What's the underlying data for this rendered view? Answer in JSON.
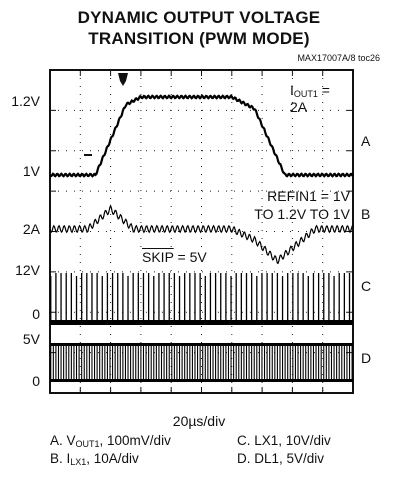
{
  "title_line1": "DYNAMIC OUTPUT VOLTAGE",
  "title_line2": "TRANSITION (PWM MODE)",
  "figure_id": "MAX17007A/8 toc26",
  "y_labels": {
    "v12": "1.2V",
    "v1": "1V",
    "a2": "2A",
    "v12b": "12V",
    "zero_c": "0",
    "v5": "5V",
    "zero_d": "0"
  },
  "channel_labels": {
    "a": "A",
    "b": "B",
    "c": "C",
    "d": "D"
  },
  "annotations": {
    "iout_prefix": "I",
    "iout_sub": "OUT1",
    "iout_suffix": " = 2A",
    "refin_line1": "REFIN1 = 1V",
    "refin_line2": "TO 1.2V TO 1V",
    "skip_name": "SKIP",
    "skip_value": " = 5V"
  },
  "timebase": "20µs/div",
  "legend": {
    "a_prefix": "A. V",
    "a_sub": "OUT1",
    "a_suffix": ", 100mV/div",
    "b_prefix": "B. I",
    "b_sub": "LX1",
    "b_suffix": ", 10A/div",
    "c": "C. LX1, 10V/div",
    "d": "D. DL1, 5V/div"
  },
  "chart_data": {
    "type": "line",
    "x_unit": "µs",
    "x_range": [
      0,
      200
    ],
    "series": [
      {
        "name": "A",
        "x": [
          0,
          30,
          50,
          60,
          120,
          135,
          155,
          200
        ],
        "y": [
          1.0,
          1.0,
          1.18,
          1.2,
          1.2,
          1.17,
          1.0,
          1.0
        ]
      },
      {
        "name": "B",
        "x": [
          0,
          25,
          40,
          55,
          70,
          120,
          135,
          150,
          175,
          200
        ],
        "y": [
          2.0,
          2.0,
          4.2,
          2.0,
          2.0,
          2.0,
          0.8,
          -1.5,
          2.0,
          2.0
        ]
      },
      {
        "name": "C",
        "x": [
          0,
          200
        ],
        "y": [
          0,
          12
        ]
      },
      {
        "name": "D",
        "x": [
          0,
          200
        ],
        "y": [
          0,
          5
        ]
      }
    ]
  }
}
